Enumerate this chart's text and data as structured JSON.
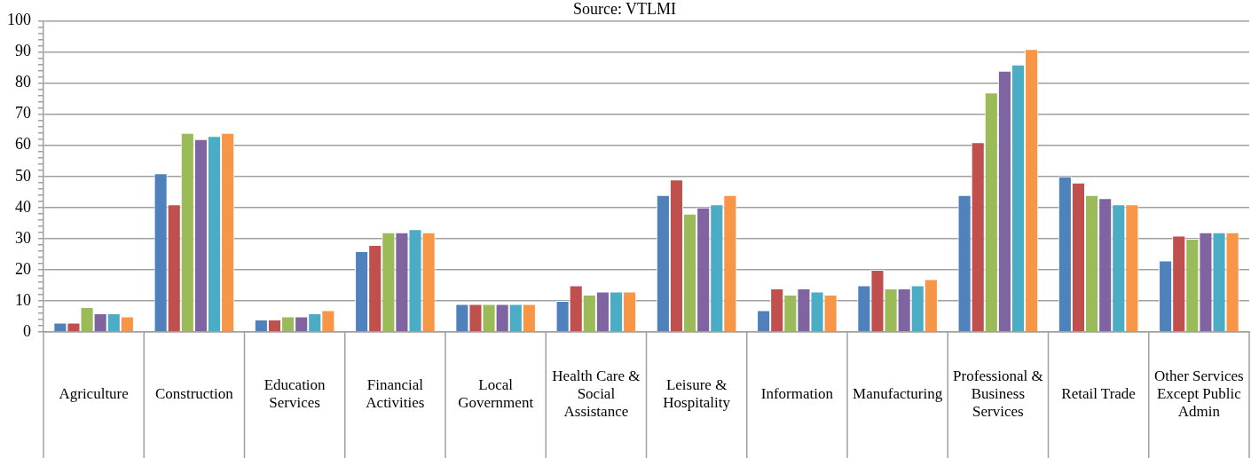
{
  "chart_data": {
    "type": "bar",
    "title": "Source: VTLMI",
    "categories": [
      "Agriculture",
      "Construction",
      "Education Services",
      "Financial Activities",
      "Local Government",
      "Health Care & Social Assistance",
      "Leisure & Hospitality",
      "Information",
      "Manufacturing",
      "Professional & Business Services",
      "Retail Trade",
      "Other Services Except Public Admin"
    ],
    "series": [
      {
        "color": "#4f81bd",
        "values": [
          3,
          51,
          4,
          26,
          9,
          10,
          44,
          7,
          15,
          44,
          50,
          23
        ]
      },
      {
        "color": "#c0504d",
        "values": [
          3,
          41,
          4,
          28,
          9,
          15,
          49,
          14,
          20,
          61,
          48,
          31
        ]
      },
      {
        "color": "#9bbb59",
        "values": [
          8,
          64,
          5,
          32,
          9,
          12,
          38,
          12,
          14,
          77,
          44,
          30
        ]
      },
      {
        "color": "#8064a2",
        "values": [
          6,
          62,
          5,
          32,
          9,
          13,
          40,
          14,
          14,
          84,
          43,
          32
        ]
      },
      {
        "color": "#4bacc6",
        "values": [
          6,
          63,
          6,
          33,
          9,
          13,
          41,
          13,
          15,
          86,
          41,
          32
        ]
      },
      {
        "color": "#f79646",
        "values": [
          5,
          64,
          7,
          32,
          9,
          13,
          44,
          12,
          17,
          91,
          41,
          32
        ]
      }
    ],
    "ylim": [
      0,
      100
    ],
    "yticks": [
      0,
      {
        "value": 2,
        "label": null
      },
      {
        "value": 4,
        "label": null
      },
      {
        "value": 6,
        "label": null
      },
      {
        "value": 8,
        "label": null
      },
      10,
      {
        "value": 12,
        "label": null
      },
      {
        "value": 14,
        "label": null
      },
      {
        "value": 16,
        "label": null
      },
      {
        "value": 18,
        "label": null
      },
      20,
      {
        "value": 22,
        "label": null
      },
      {
        "value": 24,
        "label": null
      },
      {
        "value": 26,
        "label": null
      },
      {
        "value": 28,
        "label": null
      },
      30,
      {
        "value": 32,
        "label": null
      },
      {
        "value": 34,
        "label": null
      },
      {
        "value": 36,
        "label": null
      },
      {
        "value": 38,
        "label": null
      },
      40,
      {
        "value": 42,
        "label": null
      },
      {
        "value": 44,
        "label": null
      },
      {
        "value": 46,
        "label": null
      },
      {
        "value": 48,
        "label": null
      },
      50,
      {
        "value": 52,
        "label": null
      },
      {
        "value": 54,
        "label": null
      },
      {
        "value": 56,
        "label": null
      },
      {
        "value": 58,
        "label": null
      },
      60,
      {
        "value": 62,
        "label": null
      },
      {
        "value": 64,
        "label": null
      },
      {
        "value": 66,
        "label": null
      },
      {
        "value": 68,
        "label": null
      },
      70,
      {
        "value": 72,
        "label": null
      },
      {
        "value": 74,
        "label": null
      },
      {
        "value": 76,
        "label": null
      },
      {
        "value": 78,
        "label": null
      },
      80,
      {
        "value": 82,
        "label": null
      },
      {
        "value": 84,
        "label": null
      },
      {
        "value": 86,
        "label": null
      },
      {
        "value": 88,
        "label": null
      },
      90,
      {
        "value": 92,
        "label": null
      },
      {
        "value": 94,
        "label": null
      },
      {
        "value": 96,
        "label": null
      },
      {
        "value": 98,
        "label": null
      },
      100
    ],
    "grid": "y",
    "legend": false
  }
}
